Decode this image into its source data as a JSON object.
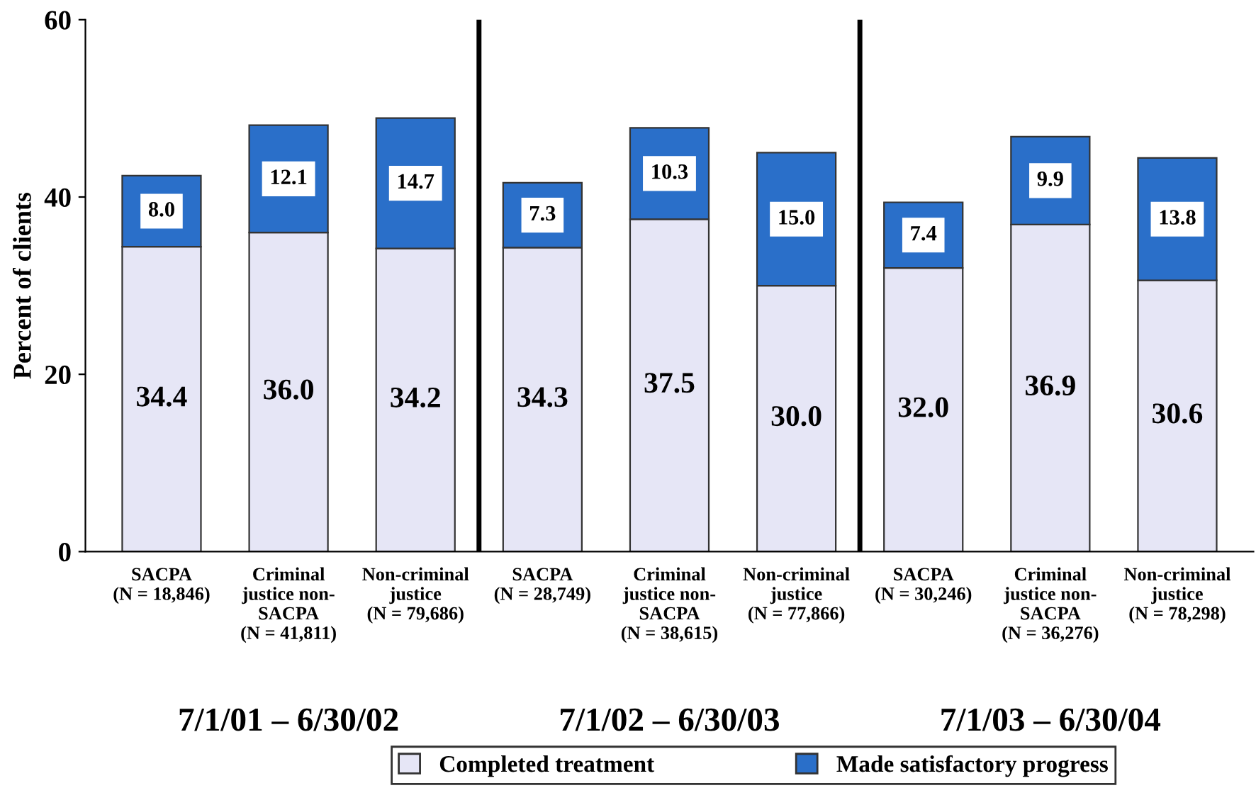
{
  "chart_data": {
    "type": "bar",
    "stacked": true,
    "ylabel": "Percent of clients",
    "categories": [
      "SACPA\n(N = 18,846)",
      "Criminal\njustice non-\nSACPA\n(N = 41,811)",
      "Non-criminal\njustice\n(N = 79,686)",
      "SACPA\n(N = 28,749)",
      "Criminal\njustice non-\nSACPA\n(N = 38,615)",
      "Non-criminal\njustice\n(N = 77,866)",
      "SACPA\n(N = 30,246)",
      "Criminal\njustice non-\nSACPA\n(N = 36,276)",
      "Non-criminal\njustice\n(N = 78,298)"
    ],
    "series": [
      {
        "name": "Completed treatment",
        "color": "#e6e6f6",
        "values": [
          34.4,
          36.0,
          34.2,
          34.3,
          37.5,
          30.0,
          32.0,
          36.9,
          30.6
        ],
        "value_labels": [
          "34.4",
          "36.0",
          "34.2",
          "34.3",
          "37.5",
          "30.0",
          "32.0",
          "36.9",
          "30.6"
        ]
      },
      {
        "name": "Made satisfactory progress",
        "color": "#2a6fc9",
        "values": [
          8.0,
          12.1,
          14.7,
          7.3,
          10.3,
          15.0,
          7.4,
          9.9,
          13.8
        ],
        "value_labels": [
          "8.0",
          "12.1",
          "14.7",
          "7.3",
          "10.3",
          "15.0",
          "7.4",
          "9.9",
          "13.8"
        ]
      }
    ],
    "ylim": [
      0,
      60
    ],
    "yticks": [
      0,
      20,
      40,
      60
    ],
    "grid": false,
    "legend": "bottom",
    "annotations": [
      "7/1/01 – 6/30/02",
      "7/1/02 – 6/30/03",
      "7/1/03 – 6/30/04"
    ]
  }
}
